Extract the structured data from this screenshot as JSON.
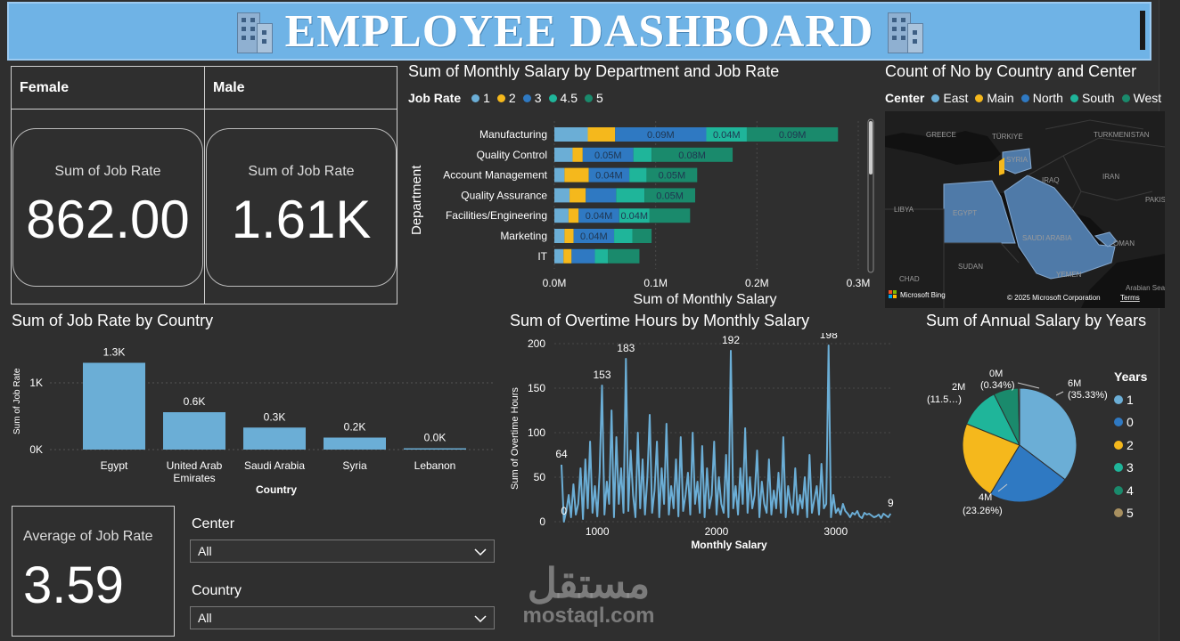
{
  "header": {
    "title": "EMPLOYEE DASHBOARD",
    "icon_left": "office-building-icon",
    "icon_right": "office-building-icon"
  },
  "gender_matrix": {
    "col_female": "Female",
    "col_male": "Male",
    "female_label": "Sum of Job Rate",
    "female_value": "862.00",
    "male_label": "Sum of Job Rate",
    "male_value": "1.61K"
  },
  "dept_chart": {
    "title": "Sum of Monthly Salary by Department and Job Rate",
    "legend_title": "Job Rate",
    "legend": [
      {
        "name": "1",
        "color": "#6baed6"
      },
      {
        "name": "2",
        "color": "#f5b81c"
      },
      {
        "name": "3",
        "color": "#2f79c2"
      },
      {
        "name": "4.5",
        "color": "#1fb59a"
      },
      {
        "name": "5",
        "color": "#1a8a6c"
      }
    ],
    "ylabel": "Department",
    "xlabel": "Sum of Monthly Salary",
    "xticks": [
      "0.0M",
      "0.1M",
      "0.2M",
      "0.3M"
    ]
  },
  "map": {
    "title": "Count of No by Country and Center",
    "legend_title": "Center",
    "legend": [
      {
        "name": "East",
        "color": "#6baed6"
      },
      {
        "name": "Main",
        "color": "#f5b81c"
      },
      {
        "name": "North",
        "color": "#2f79c2"
      },
      {
        "name": "South",
        "color": "#1fb59a"
      },
      {
        "name": "West",
        "color": "#1a8a6c"
      }
    ],
    "labels": {
      "greece": "GREECE",
      "turkiye": "TÜRKIYE",
      "turkmenistan": "TURKMENISTAN",
      "syria": "SYRIA",
      "iraq": "IRAQ",
      "iran": "IRAN",
      "libya": "LIBYA",
      "egypt": "EGYPT",
      "saudi": "SAUDI ARABIA",
      "pakis": "PAKIS",
      "oman": "OMAN",
      "chad": "CHAD",
      "sudan": "SUDAN",
      "yemen": "YEMEN",
      "arabian": "Arabian Sea"
    },
    "bing": "Microsoft Bing",
    "copyright": "© 2025 Microsoft Corporation",
    "terms": "Terms"
  },
  "country_chart": {
    "title": "Sum of Job Rate by Country",
    "ylabel": "Sum of Job Rate",
    "xlabel": "Country",
    "yticks": [
      "1K",
      "0K"
    ],
    "data_labels": [
      "1.3K",
      "0.6K",
      "0.3K",
      "0.2K",
      "0.0K"
    ],
    "cat_lines": [
      [
        "Egypt"
      ],
      [
        "United Arab",
        "Emirates"
      ],
      [
        "Saudi Arabia"
      ],
      [
        "Syria"
      ],
      [
        "Lebanon"
      ]
    ]
  },
  "overtime_chart": {
    "title": "Sum of Overtime Hours by Monthly Salary",
    "ylabel": "Sum of Overtime Hours",
    "xlabel": "Monthly Salary",
    "yticks": [
      "200",
      "150",
      "100",
      "50",
      "0"
    ],
    "xticks": [
      "1000",
      "2000",
      "3000"
    ],
    "annotations": [
      "64",
      "0",
      "153",
      "183",
      "192",
      "198",
      "9"
    ]
  },
  "pie_chart": {
    "title": "Sum of Annual Salary by Years",
    "legend_title": "Years",
    "legend": [
      {
        "name": "1",
        "color": "#6baed6"
      },
      {
        "name": "0",
        "color": "#2f79c2"
      },
      {
        "name": "2",
        "color": "#f5b81c"
      },
      {
        "name": "3",
        "color": "#1fb59a"
      },
      {
        "name": "4",
        "color": "#1a8a6c"
      },
      {
        "name": "5",
        "color": "#a89060"
      }
    ],
    "labels": [
      "6M",
      "(35.33%)",
      "4M",
      "(23.26%)",
      "2M",
      "(11.5…)",
      "0M",
      "(0.34%)"
    ]
  },
  "avg_card": {
    "label": "Average of Job Rate",
    "value": "3.59"
  },
  "slicers": {
    "center_label": "Center",
    "center_value": "All",
    "country_label": "Country",
    "country_value": "All"
  },
  "watermark": {
    "arabic": "مستقل",
    "latin": "mostaql.com"
  },
  "chart_data": [
    {
      "type": "bar",
      "orientation": "horizontal",
      "stacked": true,
      "title": "Sum of Monthly Salary by Department and Job Rate",
      "xlabel": "Sum of Monthly Salary",
      "ylabel": "Department",
      "xlim": [
        0,
        0.3
      ],
      "unit": "M",
      "categories": [
        "Manufacturing",
        "Quality Control",
        "Account Management",
        "Quality Assurance",
        "Facilities/Engineering",
        "Marketing",
        "IT"
      ],
      "series": [
        {
          "name": "1",
          "values": [
            0.033,
            0.018,
            0.01,
            0.015,
            0.014,
            0.01,
            0.009
          ]
        },
        {
          "name": "2",
          "values": [
            0.027,
            0.01,
            0.024,
            0.016,
            0.01,
            0.009,
            0.008
          ]
        },
        {
          "name": "3",
          "values": [
            0.09,
            0.05,
            0.04,
            0.03,
            0.04,
            0.04,
            0.023
          ]
        },
        {
          "name": "4.5",
          "values": [
            0.04,
            0.018,
            0.017,
            0.028,
            0.03,
            0.018,
            0.013
          ]
        },
        {
          "name": "5",
          "values": [
            0.09,
            0.08,
            0.05,
            0.05,
            0.04,
            0.019,
            0.031
          ]
        }
      ],
      "data_labels": [
        [
          "",
          "",
          "0.09M",
          "0.04M",
          "0.09M"
        ],
        [
          "",
          "",
          "0.05M",
          "",
          "0.08M"
        ],
        [
          "",
          "",
          "0.04M",
          "",
          "0.05M"
        ],
        [
          "",
          "",
          "",
          "",
          "0.05M"
        ],
        [
          "",
          "",
          "0.04M",
          "0.04M",
          ""
        ],
        [
          "",
          "",
          "0.04M",
          "",
          ""
        ],
        [
          "",
          "",
          "",
          "",
          ""
        ]
      ]
    },
    {
      "type": "bar",
      "title": "Sum of Job Rate by Country",
      "xlabel": "Country",
      "ylabel": "Sum of Job Rate",
      "categories": [
        "Egypt",
        "United Arab Emirates",
        "Saudi Arabia",
        "Syria",
        "Lebanon"
      ],
      "values": [
        1.3,
        0.56,
        0.33,
        0.18,
        0.02
      ],
      "unit": "K",
      "ylim": [
        0,
        1.35
      ]
    },
    {
      "type": "line",
      "title": "Sum of Overtime Hours by Monthly Salary",
      "xlabel": "Monthly Salary",
      "ylabel": "Sum of Overtime Hours",
      "xlim": [
        640,
        3480
      ],
      "ylim": [
        0,
        200
      ],
      "x": [
        700,
        720,
        740,
        760,
        780,
        800,
        820,
        840,
        860,
        880,
        900,
        920,
        940,
        960,
        980,
        1000,
        1020,
        1040,
        1060,
        1080,
        1100,
        1120,
        1140,
        1160,
        1180,
        1200,
        1220,
        1240,
        1260,
        1280,
        1300,
        1320,
        1340,
        1360,
        1380,
        1400,
        1420,
        1440,
        1460,
        1480,
        1500,
        1520,
        1540,
        1560,
        1580,
        1600,
        1620,
        1640,
        1660,
        1680,
        1700,
        1720,
        1740,
        1760,
        1780,
        1800,
        1820,
        1840,
        1860,
        1880,
        1900,
        1920,
        1940,
        1960,
        1980,
        2000,
        2020,
        2040,
        2060,
        2080,
        2100,
        2120,
        2140,
        2160,
        2180,
        2200,
        2220,
        2240,
        2260,
        2280,
        2300,
        2320,
        2340,
        2360,
        2380,
        2400,
        2420,
        2440,
        2460,
        2480,
        2500,
        2520,
        2540,
        2560,
        2580,
        2600,
        2620,
        2640,
        2660,
        2680,
        2700,
        2720,
        2740,
        2760,
        2780,
        2800,
        2820,
        2840,
        2860,
        2880,
        2900,
        2920,
        2940,
        2960,
        2980,
        3000,
        3020,
        3040,
        3060,
        3080,
        3100,
        3120,
        3140,
        3160,
        3180,
        3200,
        3220,
        3240,
        3260,
        3280,
        3300,
        3320,
        3340,
        3360,
        3380,
        3400,
        3420,
        3440,
        3460
      ],
      "y": [
        64,
        0,
        12,
        30,
        5,
        42,
        8,
        20,
        60,
        3,
        70,
        15,
        90,
        10,
        40,
        6,
        55,
        153,
        8,
        45,
        20,
        125,
        5,
        95,
        20,
        60,
        10,
        183,
        12,
        80,
        30,
        5,
        100,
        15,
        70,
        8,
        50,
        120,
        10,
        35,
        90,
        5,
        60,
        20,
        110,
        8,
        40,
        15,
        70,
        6,
        95,
        12,
        30,
        55,
        8,
        100,
        20,
        45,
        10,
        85,
        5,
        60,
        15,
        30,
        90,
        8,
        50,
        20,
        10,
        75,
        5,
        192,
        15,
        40,
        8,
        60,
        20,
        105,
        10,
        50,
        15,
        30,
        80,
        5,
        45,
        20,
        10,
        70,
        8,
        35,
        15,
        55,
        10,
        95,
        5,
        40,
        20,
        10,
        60,
        8,
        30,
        15,
        50,
        5,
        75,
        10,
        25,
        40,
        8,
        65,
        15,
        20,
        198,
        5,
        30,
        10,
        15,
        8,
        20,
        12,
        9,
        5,
        10,
        8,
        12,
        6,
        4,
        10,
        8,
        9,
        7,
        5,
        6,
        8,
        4,
        9,
        7,
        5,
        9
      ],
      "point_labels": [
        {
          "x": 700,
          "y": 64,
          "label": "64"
        },
        {
          "x": 720,
          "y": 0,
          "label": "0"
        },
        {
          "x": 1040,
          "y": 153,
          "label": "153"
        },
        {
          "x": 1240,
          "y": 183,
          "label": "183"
        },
        {
          "x": 2120,
          "y": 192,
          "label": "192"
        },
        {
          "x": 2940,
          "y": 198,
          "label": "198"
        },
        {
          "x": 3460,
          "y": 9,
          "label": "9"
        }
      ]
    },
    {
      "type": "pie",
      "title": "Sum of Annual Salary by Years",
      "categories": [
        "1",
        "0",
        "2",
        "3",
        "4",
        "5"
      ],
      "values": [
        35.33,
        23.26,
        22.5,
        11.5,
        7.07,
        0.34
      ],
      "unit": "%"
    }
  ]
}
